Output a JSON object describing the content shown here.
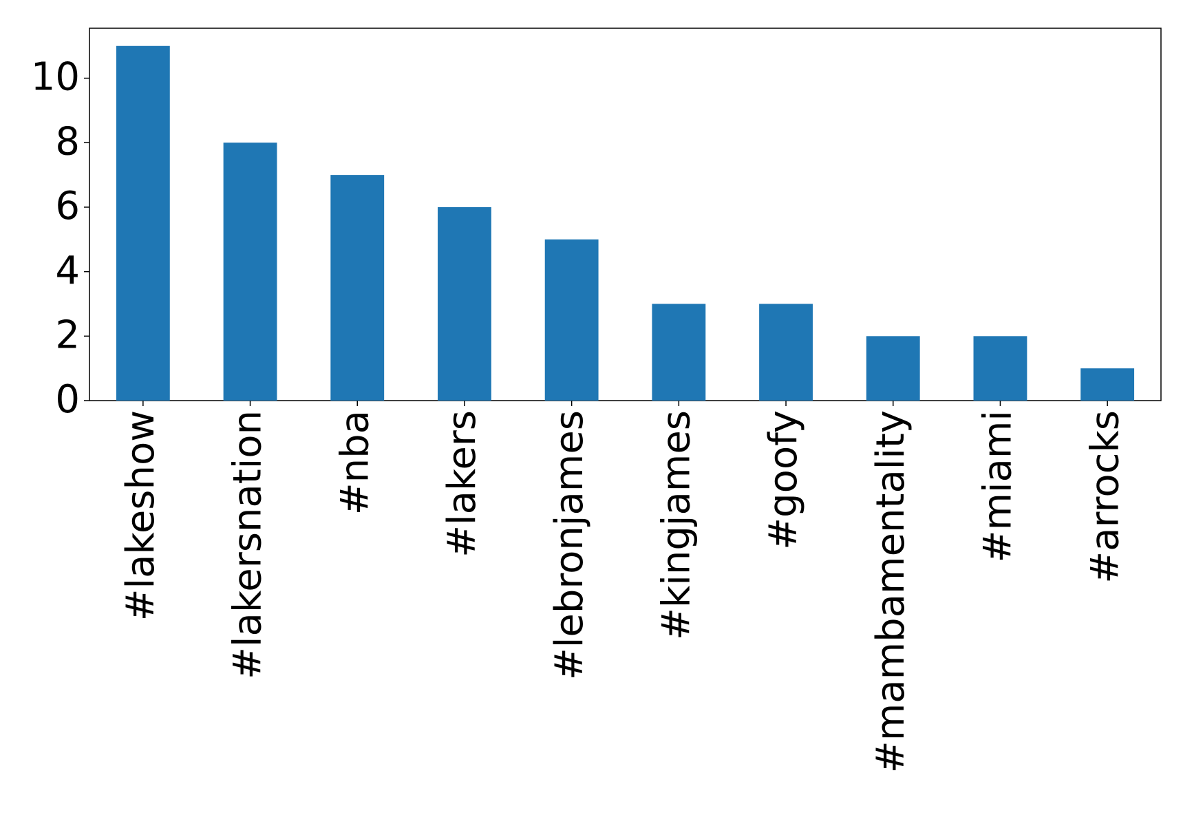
{
  "chart_data": {
    "type": "bar",
    "categories": [
      "#lakeshow",
      "#lakersnation",
      "#nba",
      "#lakers",
      "#lebronjames",
      "#kingjames",
      "#goofy",
      "#mambamentality",
      "#miami",
      "#arrocks"
    ],
    "values": [
      11,
      8,
      7,
      6,
      5,
      3,
      3,
      2,
      2,
      1
    ],
    "color": "#1f77b4",
    "ylim": [
      0,
      11.55
    ],
    "yticks": [
      0,
      2,
      4,
      6,
      8,
      10
    ],
    "grid": false
  }
}
